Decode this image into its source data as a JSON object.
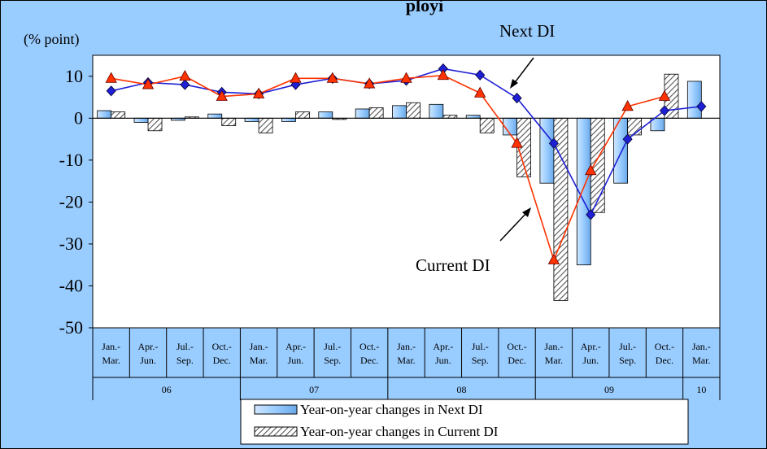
{
  "chart_data": {
    "type": "bar+line",
    "title_fragment": "ployi",
    "ylabel": "(% point)",
    "ylim": [
      -50,
      15
    ],
    "yticks": [
      10,
      0,
      -10,
      -20,
      -30,
      -40,
      -50
    ],
    "categories": [
      {
        "l1": "Jan.-",
        "l2": "Mar."
      },
      {
        "l1": "Apr.-",
        "l2": "Jun."
      },
      {
        "l1": "Jul.-",
        "l2": "Sep."
      },
      {
        "l1": "Oct.-",
        "l2": "Dec."
      },
      {
        "l1": "Jan.-",
        "l2": "Mar."
      },
      {
        "l1": "Apr.-",
        "l2": "Jun."
      },
      {
        "l1": "Jul.-",
        "l2": "Sep."
      },
      {
        "l1": "Oct.-",
        "l2": "Dec."
      },
      {
        "l1": "Jan.-",
        "l2": "Mar."
      },
      {
        "l1": "Apr.-",
        "l2": "Jun."
      },
      {
        "l1": "Jul.-",
        "l2": "Sep."
      },
      {
        "l1": "Oct.-",
        "l2": "Dec."
      },
      {
        "l1": "Jan.-",
        "l2": "Mar."
      },
      {
        "l1": "Apr.-",
        "l2": "Jun."
      },
      {
        "l1": "Jul.-",
        "l2": "Sep."
      },
      {
        "l1": "Oct.-",
        "l2": "Dec."
      },
      {
        "l1": "Jan.-",
        "l2": "Mar."
      }
    ],
    "years": [
      {
        "label": "06",
        "span": 4
      },
      {
        "label": "07",
        "span": 4
      },
      {
        "label": "08",
        "span": 4
      },
      {
        "label": "09",
        "span": 4
      },
      {
        "label": "10",
        "span": 1
      }
    ],
    "bar_series": [
      {
        "name": "Year-on-year changes in Next DI",
        "color": "#99ccff",
        "pattern": "solid",
        "values": [
          1.8,
          -1.0,
          -0.5,
          1.0,
          -0.8,
          -0.8,
          1.5,
          2.2,
          3.0,
          3.3,
          0.7,
          -4.0,
          -15.5,
          -35.0,
          -15.5,
          -3.0,
          8.8
        ]
      },
      {
        "name": "Year-on-year changes in Current DI",
        "color": "#ffffff",
        "pattern": "hatch",
        "values": [
          1.5,
          -3.0,
          0.3,
          -1.8,
          -3.5,
          1.5,
          -0.3,
          2.5,
          3.7,
          0.7,
          -3.5,
          -14.0,
          -43.5,
          -22.5,
          -4.0,
          10.5,
          null
        ]
      }
    ],
    "line_series": [
      {
        "name": "Next DI",
        "color": "#1f1fd6",
        "marker": "diamond",
        "values": [
          6.5,
          8.5,
          8.0,
          6.2,
          5.8,
          8.0,
          9.5,
          8.2,
          9.0,
          11.8,
          10.3,
          4.8,
          -6.0,
          -23.0,
          -5.0,
          1.8,
          2.8
        ]
      },
      {
        "name": "Current DI",
        "color": "#ff3300",
        "marker": "triangle",
        "values": [
          9.5,
          8.0,
          10.0,
          5.2,
          5.8,
          9.5,
          9.5,
          8.2,
          9.5,
          10.2,
          6.0,
          -6.0,
          -33.8,
          -12.5,
          2.8,
          5.2,
          null
        ]
      }
    ],
    "annotations": [
      {
        "text": "Next DI",
        "target": "Next DI"
      },
      {
        "text": "Current DI",
        "target": "Current DI"
      }
    ],
    "legend_position": "bottom"
  }
}
